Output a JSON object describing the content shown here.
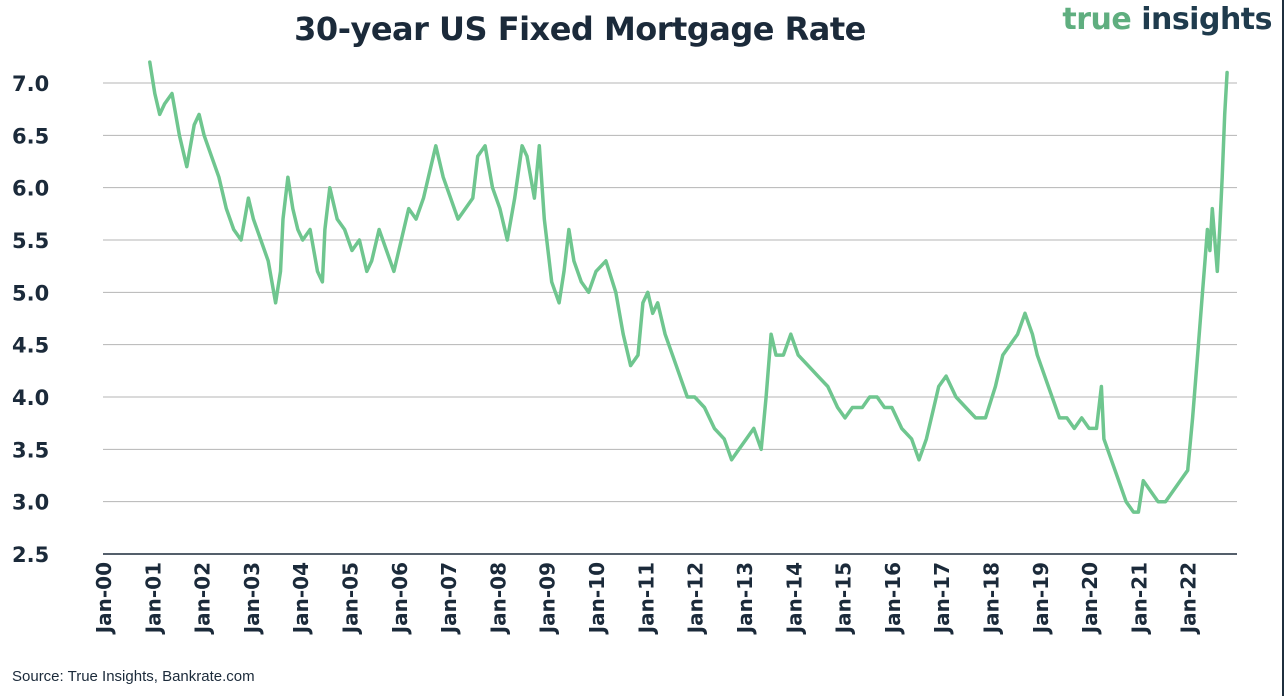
{
  "header": {
    "title": "30-year US Fixed Mortgage Rate",
    "logo_word1": "true",
    "logo_word2": "insights"
  },
  "footer": {
    "source": "Source: True Insights, Bankrate.com"
  },
  "colors": {
    "line": "#6fc68f",
    "grid": "#b5b5b5",
    "axis": "#1b2a3a",
    "logo_green": "#5fae7f",
    "logo_navy": "#1f3b4d"
  },
  "chart_data": {
    "type": "line",
    "title": "30-year US Fixed Mortgage Rate",
    "xlabel": "",
    "ylabel": "",
    "ylim": [
      2.5,
      7.0
    ],
    "yticks": [
      "2.5",
      "3.0",
      "3.5",
      "4.0",
      "4.5",
      "5.0",
      "5.5",
      "6.0",
      "6.5",
      "7.0"
    ],
    "xlim": [
      2000.0,
      2023.0
    ],
    "xticks": [
      "Jan-00",
      "Jan-01",
      "Jan-02",
      "Jan-03",
      "Jan-04",
      "Jan-05",
      "Jan-06",
      "Jan-07",
      "Jan-08",
      "Jan-09",
      "Jan-10",
      "Jan-11",
      "Jan-12",
      "Jan-13",
      "Jan-14",
      "Jan-15",
      "Jan-16",
      "Jan-17",
      "Jan-18",
      "Jan-19",
      "Jan-20",
      "Jan-21",
      "Jan-22"
    ],
    "grid": true,
    "series": [
      {
        "x": [
          2000.95,
          2001.05,
          2001.15,
          2001.25,
          2001.4,
          2001.55,
          2001.7,
          2001.85,
          2001.95,
          2002.05,
          2002.2,
          2002.35,
          2002.5,
          2002.65,
          2002.8,
          2002.95,
          2003.05,
          2003.2,
          2003.35,
          2003.5,
          2003.6,
          2003.65,
          2003.75,
          2003.85,
          2003.95,
          2004.05,
          2004.2,
          2004.35,
          2004.45,
          2004.5,
          2004.6,
          2004.75,
          2004.9,
          2005.05,
          2005.2,
          2005.35,
          2005.45,
          2005.6,
          2005.75,
          2005.9,
          2006.05,
          2006.2,
          2006.35,
          2006.5,
          2006.6,
          2006.75,
          2006.9,
          2007.05,
          2007.2,
          2007.35,
          2007.5,
          2007.6,
          2007.75,
          2007.9,
          2008.05,
          2008.2,
          2008.35,
          2008.5,
          2008.6,
          2008.75,
          2008.85,
          2008.95,
          2009.1,
          2009.25,
          2009.35,
          2009.45,
          2009.55,
          2009.7,
          2009.85,
          2010.0,
          2010.2,
          2010.4,
          2010.55,
          2010.7,
          2010.85,
          2010.95,
          2011.05,
          2011.15,
          2011.25,
          2011.4,
          2011.55,
          2011.7,
          2011.85,
          2012.0,
          2012.2,
          2012.4,
          2012.6,
          2012.75,
          2012.9,
          2013.05,
          2013.2,
          2013.35,
          2013.45,
          2013.55,
          2013.65,
          2013.8,
          2013.95,
          2014.1,
          2014.3,
          2014.5,
          2014.7,
          2014.9,
          2015.05,
          2015.2,
          2015.4,
          2015.55,
          2015.7,
          2015.85,
          2016.0,
          2016.2,
          2016.4,
          2016.55,
          2016.7,
          2016.85,
          2016.95,
          2017.1,
          2017.3,
          2017.5,
          2017.7,
          2017.9,
          2018.1,
          2018.25,
          2018.4,
          2018.55,
          2018.7,
          2018.85,
          2018.95,
          2019.1,
          2019.25,
          2019.4,
          2019.55,
          2019.7,
          2019.85,
          2020.0,
          2020.15,
          2020.25,
          2020.3,
          2020.45,
          2020.6,
          2020.75,
          2020.9,
          2021.0,
          2021.1,
          2021.25,
          2021.4,
          2021.55,
          2021.7,
          2021.85,
          2022.0,
          2022.1,
          2022.2,
          2022.3,
          2022.35,
          2022.4,
          2022.45,
          2022.5,
          2022.55,
          2022.6,
          2022.65,
          2022.7,
          2022.75,
          2022.8
        ],
        "y": [
          7.2,
          6.9,
          6.7,
          6.8,
          6.9,
          6.5,
          6.2,
          6.6,
          6.7,
          6.5,
          6.3,
          6.1,
          5.8,
          5.6,
          5.5,
          5.9,
          5.7,
          5.5,
          5.3,
          4.9,
          5.2,
          5.7,
          6.1,
          5.8,
          5.6,
          5.5,
          5.6,
          5.2,
          5.1,
          5.6,
          6.0,
          5.7,
          5.6,
          5.4,
          5.5,
          5.2,
          5.3,
          5.6,
          5.4,
          5.2,
          5.5,
          5.8,
          5.7,
          5.9,
          6.1,
          6.4,
          6.1,
          5.9,
          5.7,
          5.8,
          5.9,
          6.3,
          6.4,
          6.0,
          5.8,
          5.5,
          5.9,
          6.4,
          6.3,
          5.9,
          6.4,
          5.7,
          5.1,
          4.9,
          5.2,
          5.6,
          5.3,
          5.1,
          5.0,
          5.2,
          5.3,
          5.0,
          4.6,
          4.3,
          4.4,
          4.9,
          5.0,
          4.8,
          4.9,
          4.6,
          4.4,
          4.2,
          4.0,
          4.0,
          3.9,
          3.7,
          3.6,
          3.4,
          3.5,
          3.6,
          3.7,
          3.5,
          4.0,
          4.6,
          4.4,
          4.4,
          4.6,
          4.4,
          4.3,
          4.2,
          4.1,
          3.9,
          3.8,
          3.9,
          3.9,
          4.0,
          4.0,
          3.9,
          3.9,
          3.7,
          3.6,
          3.4,
          3.6,
          3.9,
          4.1,
          4.2,
          4.0,
          3.9,
          3.8,
          3.8,
          4.1,
          4.4,
          4.5,
          4.6,
          4.8,
          4.6,
          4.4,
          4.2,
          4.0,
          3.8,
          3.8,
          3.7,
          3.8,
          3.7,
          3.7,
          4.1,
          3.6,
          3.4,
          3.2,
          3.0,
          2.9,
          2.9,
          3.2,
          3.1,
          3.0,
          3.0,
          3.1,
          3.2,
          3.3,
          3.8,
          4.4,
          5.0,
          5.3,
          5.6,
          5.4,
          5.8,
          5.5,
          5.2,
          5.6,
          6.1,
          6.7,
          7.1
        ]
      }
    ]
  }
}
